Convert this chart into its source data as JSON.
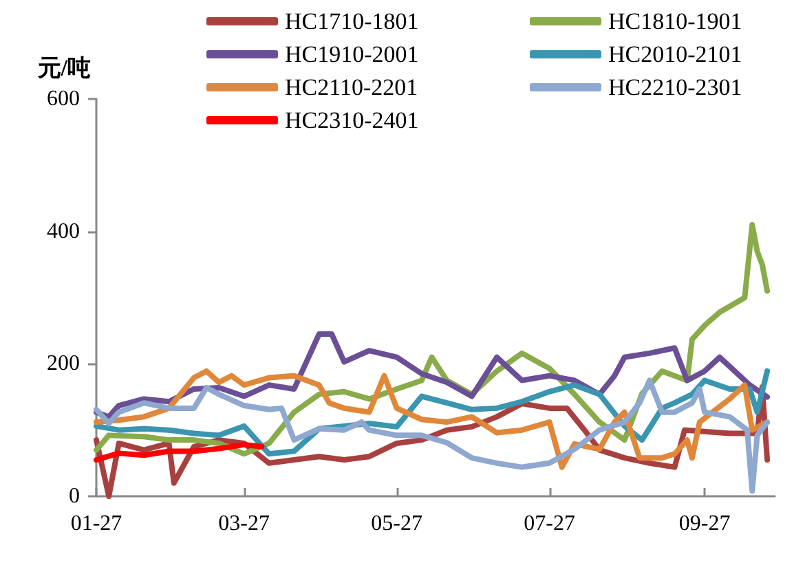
{
  "chart_data": {
    "type": "line",
    "ylabel": "元/吨",
    "legend": "top",
    "grid": false,
    "marker": "none",
    "line_style": "solid",
    "xlim": [
      "--01-27",
      "--10-25"
    ],
    "ylim": [
      0,
      600
    ],
    "yticks": [
      0,
      200,
      400,
      600
    ],
    "xticks": [
      {
        "value": "--01-27",
        "label": "01-27"
      },
      {
        "value": "--03-27",
        "label": "03-27"
      },
      {
        "value": "--05-27",
        "label": "05-27"
      },
      {
        "value": "--07-27",
        "label": "07-27"
      },
      {
        "value": "--09-27",
        "label": "09-27"
      }
    ],
    "series": [
      {
        "name": "HC1710-1801",
        "color": "#a94040",
        "x": [
          "--01-27",
          "--02-01",
          "--02-05",
          "--02-15",
          "--02-25",
          "--02-27",
          "--03-07",
          "--03-17",
          "--03-27",
          "--04-06",
          "--04-16",
          "--04-26",
          "--05-06",
          "--05-16",
          "--05-27",
          "--06-06",
          "--06-16",
          "--06-26",
          "--07-06",
          "--07-16",
          "--07-27",
          "--08-03",
          "--08-10",
          "--08-16",
          "--08-26",
          "--09-05",
          "--09-15",
          "--09-19",
          "--10-07",
          "--10-18",
          "--10-20",
          "--10-22"
        ],
        "values": [
          85,
          0,
          80,
          70,
          80,
          20,
          75,
          85,
          80,
          50,
          55,
          60,
          55,
          60,
          80,
          85,
          100,
          105,
          120,
          140,
          133,
          133,
          100,
          70,
          58,
          50,
          44,
          100,
          95,
          95,
          165,
          55
        ]
      },
      {
        "name": "HC1810-1901",
        "color": "#8aab4a",
        "x": [
          "--01-27",
          "--02-01",
          "--02-15",
          "--02-25",
          "--03-07",
          "--03-17",
          "--03-27",
          "--04-06",
          "--04-16",
          "--04-26",
          "--05-06",
          "--05-16",
          "--05-27",
          "--06-06",
          "--06-10",
          "--06-16",
          "--06-26",
          "--07-06",
          "--07-16",
          "--07-27",
          "--08-06",
          "--08-16",
          "--08-26",
          "--09-02",
          "--09-10",
          "--09-15",
          "--09-20",
          "--09-22",
          "--09-27",
          "--10-03",
          "--10-13",
          "--10-16",
          "--10-18",
          "--10-20",
          "--10-22"
        ],
        "values": [
          70,
          92,
          90,
          85,
          85,
          80,
          64,
          80,
          127,
          154,
          158,
          147,
          162,
          175,
          210,
          175,
          154,
          189,
          216,
          193,
          154,
          112,
          85,
          155,
          189,
          182,
          175,
          237,
          258,
          278,
          300,
          410,
          370,
          350,
          310
        ]
      },
      {
        "name": "HC1910-2001",
        "color": "#6b4f96",
        "x": [
          "--01-27",
          "--02-01",
          "--02-05",
          "--02-15",
          "--02-25",
          "--03-07",
          "--03-17",
          "--03-27",
          "--04-06",
          "--04-16",
          "--04-26",
          "--05-01",
          "--05-06",
          "--05-16",
          "--05-27",
          "--06-06",
          "--06-16",
          "--06-26",
          "--07-06",
          "--07-16",
          "--07-27",
          "--08-06",
          "--08-16",
          "--08-22",
          "--08-26",
          "--09-05",
          "--09-15",
          "--09-20",
          "--09-27",
          "--10-03",
          "--10-15",
          "--10-22"
        ],
        "values": [
          127,
          120,
          137,
          147,
          143,
          162,
          164,
          151,
          168,
          162,
          245,
          245,
          203,
          220,
          210,
          185,
          172,
          151,
          210,
          175,
          182,
          175,
          154,
          182,
          210,
          216,
          224,
          175,
          189,
          210,
          168,
          150
        ]
      },
      {
        "name": "HC2010-2101",
        "color": "#3a96b0",
        "x": [
          "--01-27",
          "--02-05",
          "--02-15",
          "--02-25",
          "--03-07",
          "--03-17",
          "--03-27",
          "--04-06",
          "--04-16",
          "--04-26",
          "--05-06",
          "--05-16",
          "--05-27",
          "--06-06",
          "--06-16",
          "--06-26",
          "--07-06",
          "--07-16",
          "--07-27",
          "--08-06",
          "--08-16",
          "--08-26",
          "--09-02",
          "--09-10",
          "--09-15",
          "--09-22",
          "--09-27",
          "--10-07",
          "--10-15",
          "--10-18",
          "--10-22"
        ],
        "values": [
          106,
          100,
          102,
          100,
          95,
          92,
          106,
          64,
          68,
          102,
          106,
          110,
          105,
          151,
          141,
          131,
          133,
          143,
          158,
          168,
          154,
          106,
          85,
          133,
          141,
          154,
          175,
          162,
          162,
          127,
          189
        ]
      },
      {
        "name": "HC2110-2201",
        "color": "#e0873a",
        "x": [
          "--01-27",
          "--02-05",
          "--02-15",
          "--02-25",
          "--03-07",
          "--03-12",
          "--03-17",
          "--03-22",
          "--03-27",
          "--04-06",
          "--04-16",
          "--04-26",
          "--04-30",
          "--05-06",
          "--05-16",
          "--05-22",
          "--05-27",
          "--06-06",
          "--06-16",
          "--06-26",
          "--07-06",
          "--07-16",
          "--07-27",
          "--08-01",
          "--08-06",
          "--08-16",
          "--08-22",
          "--08-26",
          "--09-01",
          "--09-10",
          "--09-15",
          "--09-20",
          "--09-22",
          "--09-25",
          "--10-07",
          "--10-13",
          "--10-16",
          "--10-22"
        ],
        "values": [
          112,
          115,
          120,
          133,
          179,
          189,
          172,
          182,
          168,
          179,
          182,
          168,
          141,
          133,
          127,
          182,
          133,
          116,
          112,
          120,
          96,
          100,
          112,
          44,
          79,
          71,
          112,
          127,
          58,
          58,
          64,
          85,
          58,
          112,
          147,
          168,
          100,
          112
        ]
      },
      {
        "name": "HC2210-2301",
        "color": "#8fa8d0",
        "x": [
          "--01-27",
          "--02-01",
          "--02-05",
          "--02-15",
          "--02-25",
          "--03-07",
          "--03-12",
          "--03-17",
          "--03-27",
          "--04-06",
          "--04-11",
          "--04-16",
          "--04-26",
          "--05-06",
          "--05-13",
          "--05-16",
          "--05-27",
          "--06-06",
          "--06-16",
          "--06-26",
          "--07-06",
          "--07-16",
          "--07-27",
          "--08-06",
          "--08-16",
          "--08-26",
          "--09-01",
          "--09-05",
          "--09-10",
          "--09-15",
          "--09-22",
          "--09-25",
          "--09-27",
          "--10-07",
          "--10-14",
          "--10-16",
          "--10-18",
          "--10-22"
        ],
        "values": [
          131,
          110,
          127,
          141,
          133,
          133,
          164,
          154,
          137,
          131,
          133,
          85,
          102,
          100,
          112,
          100,
          92,
          92,
          81,
          58,
          50,
          44,
          50,
          71,
          100,
          112,
          141,
          175,
          127,
          127,
          141,
          162,
          127,
          120,
          100,
          8,
          92,
          112
        ]
      },
      {
        "name": "HC2310-2401",
        "color": "#ff0000",
        "x": [
          "--01-27",
          "--02-05",
          "--02-15",
          "--02-25",
          "--03-07",
          "--03-17",
          "--03-27",
          "--04-03"
        ],
        "values": [
          55,
          65,
          62,
          68,
          68,
          72,
          78,
          75
        ]
      }
    ]
  }
}
